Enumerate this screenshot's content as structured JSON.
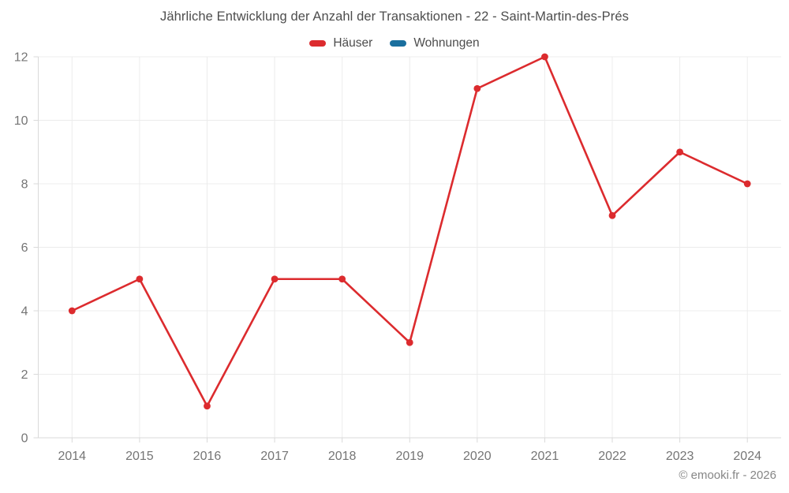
{
  "title": "Jährliche Entwicklung der Anzahl der Transaktionen - 22 - Saint-Martin-des-Prés",
  "legend": [
    {
      "label": "Häuser",
      "color": "#dc2b2e"
    },
    {
      "label": "Wohnungen",
      "color": "#1a6f9e"
    }
  ],
  "footer": "© emooki.fr - 2026",
  "colors": {
    "gridline": "#ececec",
    "axis": "#d9d9d9",
    "tick_label": "#757575",
    "title_text": "#4d4d4d",
    "footer_text": "#868686",
    "background": "#ffffff"
  },
  "chart_data": {
    "type": "line",
    "categories": [
      "2014",
      "2015",
      "2016",
      "2017",
      "2018",
      "2019",
      "2020",
      "2021",
      "2022",
      "2023",
      "2024"
    ],
    "series": [
      {
        "name": "Häuser",
        "color": "#dc2b2e",
        "values": [
          4,
          5,
          1,
          5,
          5,
          3,
          11,
          12,
          7,
          9,
          8
        ]
      },
      {
        "name": "Wohnungen",
        "color": "#1a6f9e",
        "values": []
      }
    ],
    "title": "Jährliche Entwicklung der Anzahl der Transaktionen - 22 - Saint-Martin-des-Prés",
    "xlabel": "",
    "ylabel": "",
    "ylim": [
      0,
      12
    ],
    "ytick_step": 2,
    "grid": true,
    "legend_position": "top",
    "marker_radius": 4.4,
    "line_width": 2.6
  }
}
